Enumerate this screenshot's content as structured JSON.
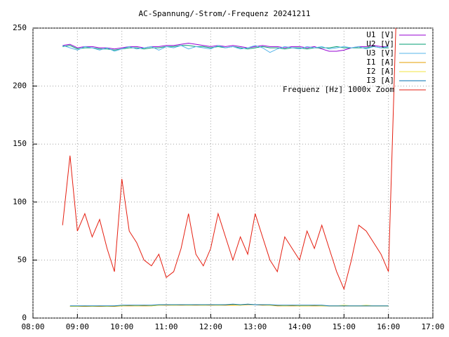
{
  "chart_data": {
    "type": "line",
    "title": "AC-Spannung/-Strom/-Frequenz 20241211",
    "x": [
      520,
      530,
      540,
      550,
      560,
      570,
      580,
      590,
      600,
      610,
      620,
      630,
      640,
      650,
      660,
      670,
      680,
      690,
      700,
      710,
      720,
      730,
      740,
      750,
      760,
      770,
      780,
      790,
      800,
      810,
      820,
      830,
      840,
      850,
      860,
      870,
      880,
      890,
      900,
      910,
      920,
      930,
      940,
      950,
      960,
      970
    ],
    "series": [
      {
        "name": "U1 [V]",
        "color": "#9400d3",
        "values": [
          235,
          236,
          233,
          234,
          234,
          233,
          233,
          232,
          233,
          234,
          234,
          233,
          234,
          234,
          235,
          235,
          236,
          237,
          236,
          235,
          234,
          235,
          234,
          235,
          234,
          233,
          234,
          235,
          234,
          234,
          233,
          234,
          234,
          233,
          234,
          232,
          230,
          230,
          231,
          233,
          234,
          234,
          235,
          234,
          234,
          null
        ]
      },
      {
        "name": "U2 [V]",
        "color": "#009e73",
        "values": [
          234,
          235,
          232,
          233,
          233,
          232,
          232,
          231,
          232,
          233,
          233,
          232,
          233,
          233,
          234,
          234,
          235,
          235,
          234,
          234,
          233,
          234,
          233,
          234,
          233,
          232,
          233,
          234,
          233,
          233,
          232,
          233,
          233,
          232,
          233,
          233,
          233,
          234,
          233,
          233,
          233,
          233,
          234,
          233,
          233,
          null
        ]
      },
      {
        "name": "U3 [V]",
        "color": "#56b4e9",
        "values": [
          235,
          233,
          231,
          234,
          233,
          231,
          233,
          230,
          232,
          234,
          232,
          233,
          234,
          231,
          234,
          233,
          235,
          232,
          234,
          233,
          232,
          235,
          233,
          234,
          232,
          233,
          235,
          233,
          229,
          232,
          234,
          233,
          232,
          234,
          233,
          234,
          232,
          233,
          234,
          233,
          234,
          232,
          234,
          233,
          234,
          null
        ]
      },
      {
        "name": "I1 [A]",
        "color": "#e69f00",
        "values": [
          null,
          10,
          10,
          10,
          10,
          10,
          10,
          10,
          10.5,
          10.5,
          10.5,
          10.5,
          10.5,
          11,
          11,
          11,
          11,
          11,
          11,
          11,
          11,
          11,
          11,
          11,
          11,
          11.5,
          11.5,
          11,
          11,
          10.5,
          10.5,
          10.5,
          10.5,
          10.5,
          10.5,
          10.5,
          10.5,
          10.5,
          10.5,
          10.5,
          10.5,
          10.5,
          10.5,
          10.5,
          10.5,
          null
        ]
      },
      {
        "name": "I2 [A]",
        "color": "#f0e442",
        "values": [
          null,
          10,
          10,
          10.5,
          10,
          10.5,
          10,
          10.5,
          10.5,
          11,
          10.5,
          11,
          10.5,
          11,
          11.5,
          11,
          11.5,
          11,
          11.5,
          11,
          11.5,
          11,
          11.5,
          11.5,
          11,
          12,
          11.5,
          11.5,
          11,
          11,
          10.5,
          11,
          10.5,
          10.5,
          11,
          10.5,
          10.5,
          10.5,
          11,
          10.5,
          10.5,
          11,
          10.5,
          10.5,
          10.5,
          null
        ]
      },
      {
        "name": "I3 [A]",
        "color": "#0072b2",
        "values": [
          null,
          10.5,
          10.5,
          10.5,
          10.5,
          10.5,
          10.5,
          10.5,
          11,
          11,
          11,
          11,
          11,
          11.5,
          11.5,
          11.5,
          11.5,
          11.5,
          11.5,
          11.5,
          11.5,
          11.5,
          11.5,
          12,
          11.5,
          12,
          11.5,
          11.5,
          11.5,
          11,
          11,
          11,
          11,
          11,
          11,
          11,
          10.5,
          10.5,
          10.5,
          10.5,
          10.5,
          10.5,
          10.5,
          10.5,
          10.5,
          null
        ]
      },
      {
        "name": "Frequenz [Hz] 1000x Zoom",
        "color": "#e51e10",
        "values": [
          80,
          140,
          75,
          90,
          70,
          85,
          60,
          40,
          120,
          75,
          65,
          50,
          45,
          55,
          35,
          40,
          60,
          90,
          55,
          45,
          60,
          90,
          70,
          50,
          70,
          55,
          90,
          70,
          50,
          40,
          70,
          60,
          50,
          75,
          60,
          80,
          60,
          40,
          25,
          50,
          80,
          75,
          65,
          55,
          40,
          250
        ]
      }
    ],
    "xlim": [
      480,
      1020
    ],
    "xticks": [
      {
        "value": 480,
        "label": "08:00"
      },
      {
        "value": 540,
        "label": "09:00"
      },
      {
        "value": 600,
        "label": "10:00"
      },
      {
        "value": 660,
        "label": "11:00"
      },
      {
        "value": 720,
        "label": "12:00"
      },
      {
        "value": 780,
        "label": "13:00"
      },
      {
        "value": 840,
        "label": "14:00"
      },
      {
        "value": 900,
        "label": "15:00"
      },
      {
        "value": 960,
        "label": "16:00"
      },
      {
        "value": 1020,
        "label": "17:00"
      }
    ],
    "ylim": [
      0,
      250
    ],
    "yticks": [
      0,
      50,
      100,
      150,
      200,
      250
    ],
    "grid": true,
    "legend": "top-right"
  }
}
